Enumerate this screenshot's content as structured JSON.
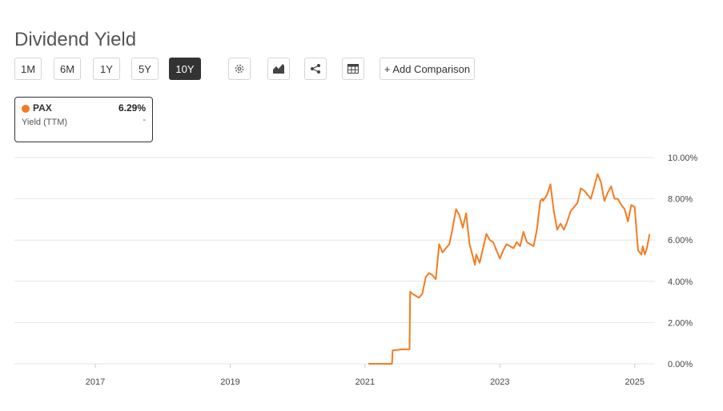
{
  "header": {
    "title": "Dividend Yield"
  },
  "toolbar": {
    "ranges": [
      "1M",
      "6M",
      "1Y",
      "5Y",
      "10Y"
    ],
    "active_range": "10Y",
    "add_comparison": "+ Add Comparison",
    "icons": [
      "gear-icon",
      "chart-type-icon",
      "share-icon",
      "table-icon"
    ]
  },
  "legend": {
    "ticker": "PAX",
    "value": "6.29%",
    "metric": "Yield (TTM)",
    "metric_value": "-",
    "color": "#f47b20"
  },
  "colors": {
    "series": "#f47b20",
    "grid": "#e6e6e6",
    "active_button": "#333333"
  },
  "chart_data": {
    "type": "line",
    "title": "",
    "xlabel": "",
    "ylabel": "",
    "x_ticks": [
      "2017",
      "2019",
      "2021",
      "2023",
      "2025"
    ],
    "y_ticks": [
      "0.00%",
      "2.00%",
      "4.00%",
      "6.00%",
      "8.00%",
      "10.00%"
    ],
    "xlim": [
      2015.8,
      2025.3
    ],
    "ylim": [
      0,
      10
    ],
    "grid": true,
    "series": [
      {
        "name": "PAX",
        "x": [
          2021.05,
          2021.4,
          2021.41,
          2021.55,
          2021.66,
          2021.67,
          2021.7,
          2021.75,
          2021.8,
          2021.85,
          2021.9,
          2021.95,
          2022.0,
          2022.05,
          2022.1,
          2022.15,
          2022.2,
          2022.25,
          2022.3,
          2022.35,
          2022.4,
          2022.45,
          2022.5,
          2022.55,
          2022.6,
          2022.63,
          2022.65,
          2022.7,
          2022.75,
          2022.8,
          2022.85,
          2022.9,
          2022.95,
          2023.0,
          2023.05,
          2023.1,
          2023.15,
          2023.2,
          2023.25,
          2023.3,
          2023.35,
          2023.4,
          2023.45,
          2023.5,
          2023.55,
          2023.6,
          2023.63,
          2023.64,
          2023.7,
          2023.75,
          2023.8,
          2023.85,
          2023.9,
          2023.95,
          2024.0,
          2024.05,
          2024.1,
          2024.15,
          2024.2,
          2024.25,
          2024.3,
          2024.35,
          2024.4,
          2024.45,
          2024.5,
          2024.55,
          2024.6,
          2024.65,
          2024.7,
          2024.75,
          2024.8,
          2024.85,
          2024.9,
          2024.95,
          2025.0,
          2025.05,
          2025.1,
          2025.12,
          2025.15,
          2025.18,
          2025.22
        ],
        "values": [
          0.0,
          0.0,
          0.65,
          0.7,
          0.7,
          3.5,
          3.4,
          3.3,
          3.2,
          3.4,
          4.2,
          4.4,
          4.3,
          4.1,
          5.8,
          5.4,
          5.6,
          5.8,
          6.6,
          7.5,
          7.2,
          6.6,
          7.3,
          5.8,
          5.2,
          4.8,
          5.3,
          4.9,
          5.6,
          6.3,
          6.0,
          5.9,
          5.5,
          5.1,
          5.5,
          5.8,
          5.7,
          5.6,
          5.9,
          5.7,
          6.4,
          5.9,
          5.8,
          5.7,
          6.5,
          7.9,
          8.0,
          7.9,
          8.2,
          8.7,
          7.4,
          6.5,
          6.8,
          6.5,
          6.9,
          7.4,
          7.6,
          7.8,
          8.5,
          8.4,
          8.2,
          8.0,
          8.6,
          9.2,
          8.8,
          7.9,
          8.3,
          8.6,
          8.0,
          8.0,
          7.7,
          7.5,
          6.9,
          7.7,
          7.6,
          5.5,
          5.3,
          5.7,
          5.3,
          5.6,
          6.29
        ]
      }
    ]
  }
}
